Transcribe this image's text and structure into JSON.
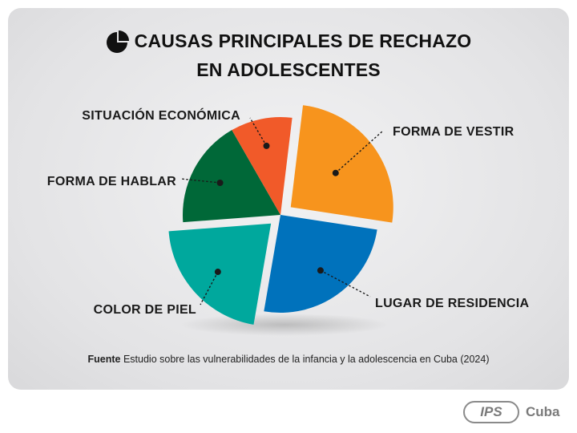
{
  "title": {
    "line1": "CAUSAS PRINCIPALES DE RECHAZO",
    "line2": "EN ADOLESCENTES",
    "icon": "pie-chart-icon"
  },
  "source": {
    "label": "Fuente",
    "text": "Estudio sobre las vulnerabilidades de la infancia y la adolescencia en Cuba (2024)"
  },
  "brand": {
    "badge": "IPS",
    "name": "Cuba"
  },
  "chart_data": {
    "type": "pie",
    "title": "CAUSAS PRINCIPALES DE RECHAZO EN ADOLESCENTES",
    "slices": [
      {
        "label": "FORMA DE VESTIR",
        "value": 25.5,
        "color": "#f7941d",
        "exploded": true
      },
      {
        "label": "LUGAR DE RESIDENCIA",
        "value": 25.3,
        "color": "#0072bc",
        "exploded": false
      },
      {
        "label": "COLOR DE PIEL",
        "value": 21.1,
        "color": "#00a89d",
        "exploded": true
      },
      {
        "label": "FORMA DE HABLAR",
        "value": 17.9,
        "color": "#006838",
        "exploded": false
      },
      {
        "label": "SITUACIÓN ECONÓMICA",
        "value": 10.2,
        "color": "#f15a29",
        "exploded": false
      }
    ]
  }
}
